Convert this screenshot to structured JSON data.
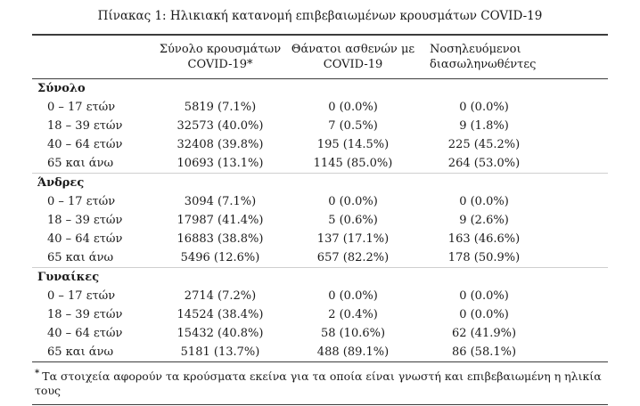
{
  "title": "Πίνακας 1: Ηλικιακή κατανομή επιβεβαιωμένων κρουσμάτων COVID-19",
  "table": {
    "headers": [
      "Σύνολο κρουσμάτων COVID-19*",
      "Θάνατοι ασθενών με COVID-19",
      "Νοσηλευόμενοι διασωληνωθέντες"
    ],
    "sections": [
      {
        "name": "Σύνολο",
        "rows": [
          {
            "label": "0 – 17 ετών",
            "cases": "5819 (7.1%)",
            "deaths": "0 (0.0%)",
            "intubated": "0 (0.0%)"
          },
          {
            "label": "18 – 39 ετών",
            "cases": "32573 (40.0%)",
            "deaths": "7 (0.5%)",
            "intubated": "9 (1.8%)"
          },
          {
            "label": "40 – 64 ετών",
            "cases": "32408 (39.8%)",
            "deaths": "195 (14.5%)",
            "intubated": "225 (45.2%)"
          },
          {
            "label": "65 και άνω",
            "cases": "10693 (13.1%)",
            "deaths": "1145 (85.0%)",
            "intubated": "264 (53.0%)"
          }
        ]
      },
      {
        "name": "Άνδρες",
        "rows": [
          {
            "label": "0 – 17 ετών",
            "cases": "3094 (7.1%)",
            "deaths": "0 (0.0%)",
            "intubated": "0 (0.0%)"
          },
          {
            "label": "18 – 39 ετών",
            "cases": "17987 (41.4%)",
            "deaths": "5 (0.6%)",
            "intubated": "9 (2.6%)"
          },
          {
            "label": "40 – 64 ετών",
            "cases": "16883 (38.8%)",
            "deaths": "137 (17.1%)",
            "intubated": "163 (46.6%)"
          },
          {
            "label": "65 και άνω",
            "cases": "5496 (12.6%)",
            "deaths": "657 (82.2%)",
            "intubated": "178 (50.9%)"
          }
        ]
      },
      {
        "name": "Γυναίκες",
        "rows": [
          {
            "label": "0 – 17 ετών",
            "cases": "2714 (7.2%)",
            "deaths": "0 (0.0%)",
            "intubated": "0 (0.0%)"
          },
          {
            "label": "18 – 39 ετών",
            "cases": "14524 (38.4%)",
            "deaths": "2 (0.4%)",
            "intubated": "0 (0.0%)"
          },
          {
            "label": "40 – 64 ετών",
            "cases": "15432 (40.8%)",
            "deaths": "58 (10.6%)",
            "intubated": "62 (41.9%)"
          },
          {
            "label": "65 και άνω",
            "cases": "5181 (13.7%)",
            "deaths": "488 (89.1%)",
            "intubated": "86 (58.1%)"
          }
        ]
      }
    ]
  },
  "footnote": {
    "marker": "*",
    "text": "Τα στοιχεία αφορούν τα κρούσματα εκείνα για τα οποία είναι γνωστή και επιβεβαιωμένη η ηλικία τους"
  }
}
